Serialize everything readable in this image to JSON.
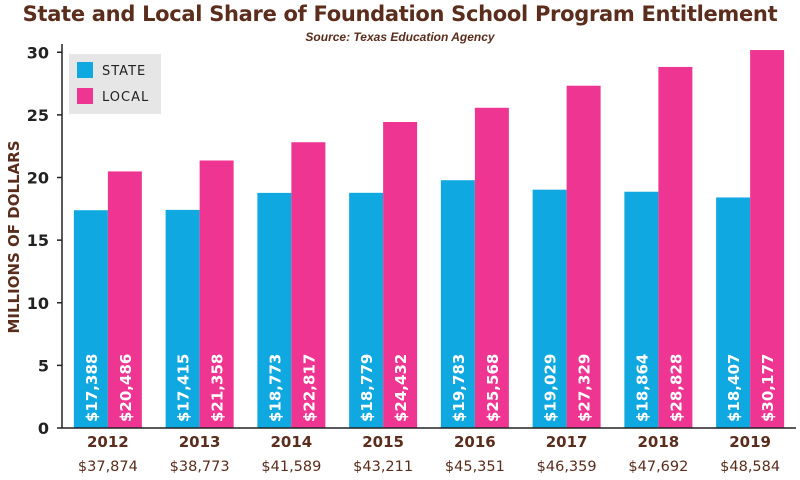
{
  "chart_data": {
    "type": "bar",
    "title": "State and Local Share of Foundation School Program Entitlement",
    "subtitle": "Source: Texas Education Agency",
    "ylabel": "MILLIONS OF DOLLARS",
    "xlabel": "",
    "ylim": [
      0,
      30.5
    ],
    "yticks": [
      "0",
      "5",
      "10",
      "15",
      "20",
      "25",
      "30"
    ],
    "legend_position": "top-left",
    "categories": [
      "2012",
      "2013",
      "2014",
      "2015",
      "2016",
      "2017",
      "2018",
      "2019"
    ],
    "totals": [
      "$37,874",
      "$38,773",
      "$41,589",
      "$43,211",
      "$45,351",
      "$46,359",
      "$47,692",
      "$48,584"
    ],
    "series": [
      {
        "name": "STATE",
        "color": "#0fa8e0",
        "values": [
          17.388,
          17.415,
          18.773,
          18.779,
          19.783,
          19.029,
          18.864,
          18.407
        ],
        "labels": [
          "$17,388",
          "$17,415",
          "$18,773",
          "$18,779",
          "$19,783",
          "$19,029",
          "$18,864",
          "$18,407"
        ]
      },
      {
        "name": "LOCAL",
        "color": "#ef3592",
        "values": [
          20.486,
          21.358,
          22.817,
          24.432,
          25.568,
          27.329,
          28.828,
          30.177
        ],
        "labels": [
          "$20,486",
          "$21,358",
          "$22,817",
          "$24,432",
          "$25,568",
          "$27,329",
          "$28,828",
          "$30,177"
        ]
      }
    ]
  },
  "colors": {
    "text": "#5a2d1c",
    "axis": "#222222",
    "legend_bg": "#e6e6e6"
  }
}
